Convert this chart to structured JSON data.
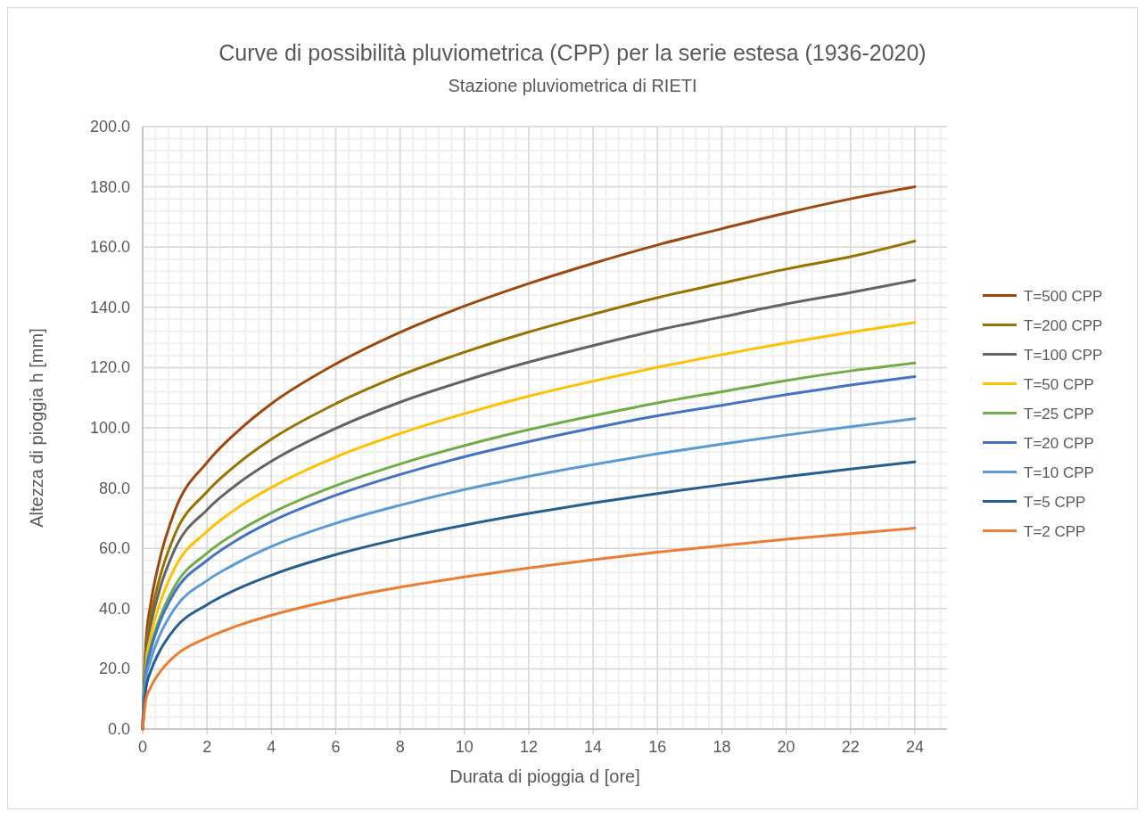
{
  "chart_data": {
    "type": "line",
    "title": "Curve di possibilità pluviometrica (CPP) per la serie estesa (1936-2020)",
    "subtitle": "Stazione pluviometrica di RIETI",
    "xlabel": "Durata di pioggia d [ore]",
    "ylabel": "Altezza di pioggia h [mm]",
    "x": [
      0,
      0.1,
      0.25,
      0.5,
      1,
      2,
      3,
      4,
      6,
      8,
      10,
      12,
      14,
      16,
      18,
      20,
      22,
      24
    ],
    "series": [
      {
        "name": "T=500 CPP",
        "color": "#9e480e",
        "values": [
          0,
          28.9,
          41.6,
          55.0,
          72.5,
          88.5,
          99.3,
          108.0,
          121.2,
          131.7,
          140.4,
          147.9,
          154.6,
          160.7,
          166.1,
          171.3,
          176.0,
          180.0
        ]
      },
      {
        "name": "T=200 CPP",
        "color": "#997300",
        "values": [
          0,
          25.7,
          37.1,
          49.0,
          64.6,
          78.8,
          88.5,
          96.2,
          108.0,
          117.4,
          125.1,
          131.8,
          137.7,
          143.2,
          148.0,
          152.7,
          156.8,
          162.0
        ]
      },
      {
        "name": "T=100 CPP",
        "color": "#636363",
        "values": [
          0,
          23.8,
          34.3,
          45.3,
          59.7,
          72.8,
          81.8,
          88.9,
          99.8,
          108.5,
          115.6,
          121.8,
          127.3,
          132.4,
          136.8,
          141.1,
          144.9,
          149.0
        ]
      },
      {
        "name": "T=50 CPP",
        "color": "#ffc000",
        "values": [
          0,
          21.3,
          30.8,
          40.6,
          53.6,
          65.6,
          73.8,
          80.2,
          90.3,
          98.1,
          104.7,
          110.5,
          115.5,
          120.1,
          124.3,
          128.2,
          131.7,
          135.0
        ]
      },
      {
        "name": "T=25 CPP",
        "color": "#70ad47",
        "values": [
          0,
          18.9,
          27.3,
          36.0,
          47.5,
          58.4,
          65.8,
          71.7,
          80.8,
          88.0,
          94.1,
          99.4,
          104.0,
          108.3,
          112.0,
          115.7,
          118.9,
          121.5
        ]
      },
      {
        "name": "T=20 CPP",
        "color": "#4472c4",
        "values": [
          0,
          18.1,
          26.2,
          34.6,
          45.6,
          56.0,
          63.2,
          68.9,
          77.6,
          84.5,
          90.4,
          95.4,
          99.9,
          104.0,
          107.5,
          111.0,
          114.2,
          117.0
        ]
      },
      {
        "name": "T=10 CPP",
        "color": "#5b9bd5",
        "values": [
          0,
          16.0,
          23.0,
          30.4,
          40.1,
          49.3,
          55.5,
          60.6,
          68.3,
          74.3,
          79.5,
          83.9,
          87.8,
          91.4,
          94.6,
          97.6,
          100.4,
          103.0
        ]
      },
      {
        "name": "T=5 CPP",
        "color": "#255e91",
        "values": [
          0,
          13.3,
          19.2,
          25.3,
          33.4,
          41.3,
          46.8,
          51.1,
          57.9,
          63.2,
          67.7,
          71.6,
          75.1,
          78.2,
          81.1,
          83.8,
          86.3,
          88.7
        ]
      },
      {
        "name": "T=2 CPP",
        "color": "#ed7d31",
        "values": [
          0,
          9.7,
          13.9,
          18.4,
          24.3,
          30.3,
          34.5,
          37.8,
          43.0,
          47.1,
          50.5,
          53.5,
          56.2,
          58.7,
          60.9,
          63.0,
          64.9,
          66.7
        ]
      }
    ],
    "xlim": [
      0,
      25
    ],
    "xticks": [
      0,
      2,
      4,
      6,
      8,
      10,
      12,
      14,
      16,
      18,
      20,
      22,
      24
    ],
    "ylim": [
      0,
      200
    ],
    "yticks": [
      {
        "value": 0,
        "label": "0.0"
      },
      {
        "value": 20,
        "label": "20.0"
      },
      {
        "value": 40,
        "label": "40.0"
      },
      {
        "value": 60,
        "label": "60.0"
      },
      {
        "value": 80,
        "label": "80.0"
      },
      {
        "value": 100,
        "label": "100.0"
      },
      {
        "value": 120,
        "label": "120.0"
      },
      {
        "value": 140,
        "label": "140.0"
      },
      {
        "value": 160,
        "label": "160.0"
      },
      {
        "value": 180,
        "label": "180.0"
      },
      {
        "value": 200,
        "label": "200.0"
      }
    ],
    "grid": true,
    "legend": "right",
    "marker": "none",
    "line_style": "solid"
  }
}
